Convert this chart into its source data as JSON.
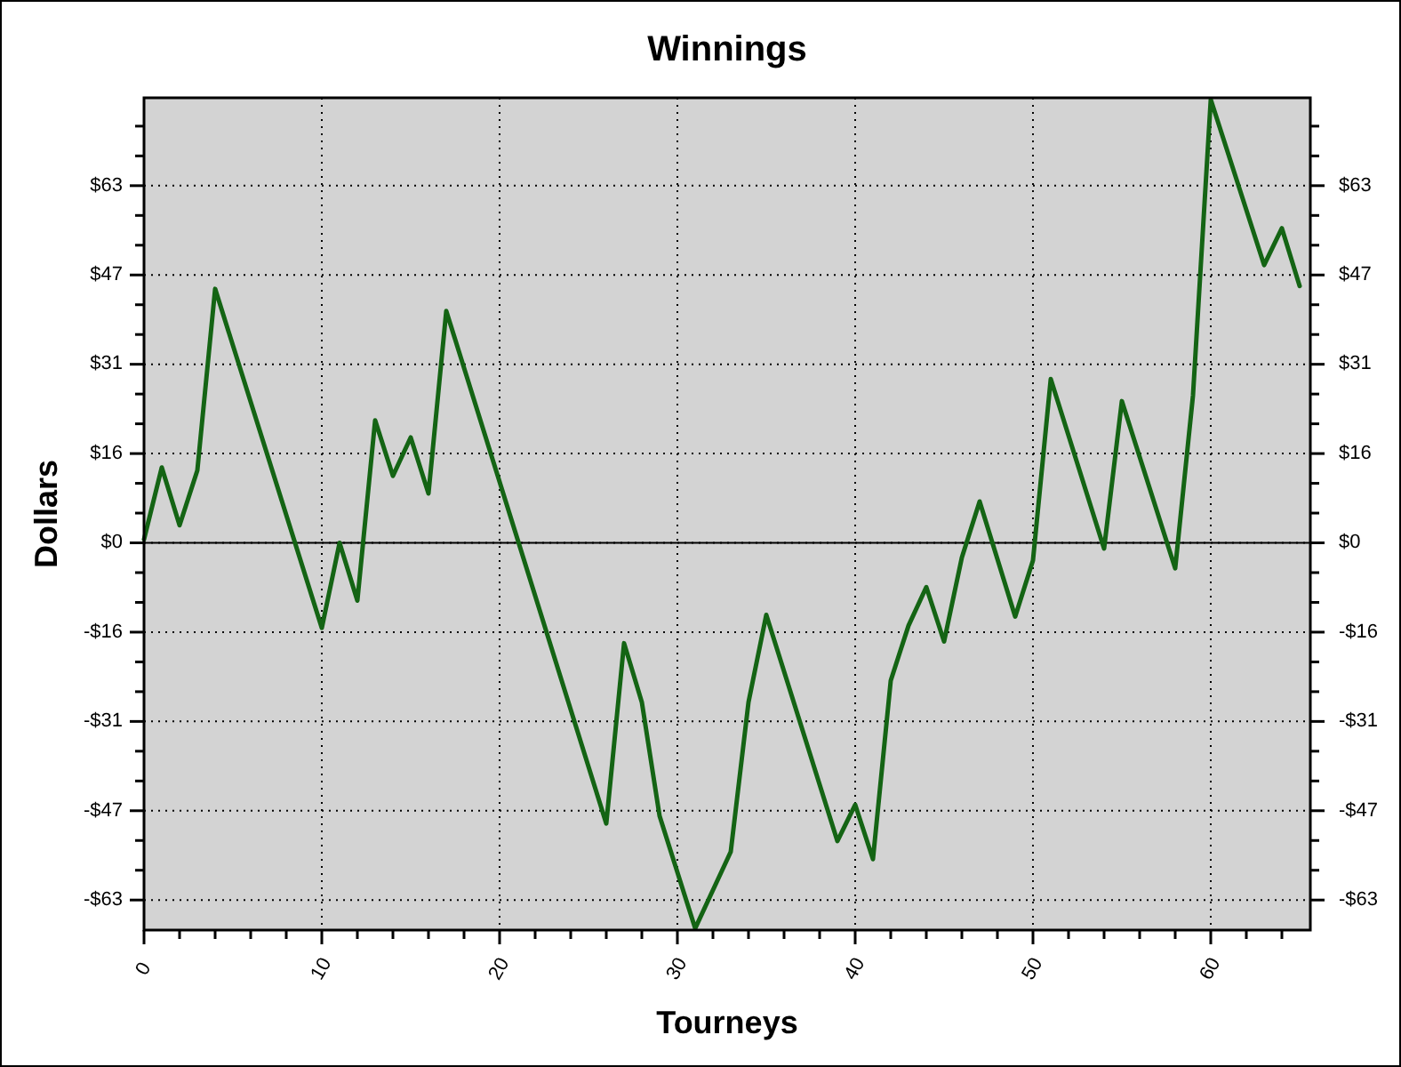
{
  "chart_data": {
    "type": "line",
    "title": "Winnings",
    "xlabel": "Tourneys",
    "ylabel": "Dollars",
    "x": [
      0,
      1,
      2,
      3,
      4,
      10,
      11,
      12,
      13,
      14,
      15,
      16,
      17,
      26,
      27,
      28,
      29,
      31,
      33,
      34,
      35,
      39,
      40,
      41,
      42,
      43,
      44,
      45,
      46,
      47,
      49,
      50,
      51,
      54,
      55,
      58,
      59,
      60,
      63,
      64,
      65
    ],
    "series": [
      {
        "color": "#146414",
        "values": [
          0.6,
          13.3,
          3.1,
          12.8,
          44.8,
          -15,
          0,
          -10.2,
          21.6,
          11.8,
          18.6,
          8.7,
          40.9,
          -49.5,
          -17.7,
          -28.1,
          -48.2,
          -68,
          -54.5,
          -28.1,
          -12.7,
          -52.6,
          -46.2,
          -55.8,
          -24.3,
          -14.6,
          -7.8,
          -17.4,
          -2.6,
          7.3,
          -13,
          -3.1,
          28.9,
          -1,
          25,
          -4.5,
          26,
          78.2,
          49,
          55.5,
          45.3
        ]
      }
    ],
    "xlim": [
      0,
      65.6
    ],
    "xticks": [
      0,
      {
        "value": 2,
        "label": null
      },
      {
        "value": 4,
        "label": null
      },
      {
        "value": 6,
        "label": null
      },
      {
        "value": 8,
        "label": null
      },
      10,
      {
        "value": 12,
        "label": null
      },
      {
        "value": 14,
        "label": null
      },
      {
        "value": 16,
        "label": null
      },
      {
        "value": 18,
        "label": null
      },
      20,
      {
        "value": 22,
        "label": null
      },
      {
        "value": 24,
        "label": null
      },
      {
        "value": 26,
        "label": null
      },
      {
        "value": 28,
        "label": null
      },
      30,
      {
        "value": 32,
        "label": null
      },
      {
        "value": 34,
        "label": null
      },
      {
        "value": 36,
        "label": null
      },
      {
        "value": 38,
        "label": null
      },
      40,
      {
        "value": 42,
        "label": null
      },
      {
        "value": 44,
        "label": null
      },
      {
        "value": 46,
        "label": null
      },
      {
        "value": 48,
        "label": null
      },
      50,
      {
        "value": 52,
        "label": null
      },
      {
        "value": 54,
        "label": null
      },
      {
        "value": 56,
        "label": null
      },
      {
        "value": 58,
        "label": null
      },
      60,
      {
        "value": 62,
        "label": null
      },
      {
        "value": 64,
        "label": null
      }
    ],
    "ylim": [
      -68.3,
      78.5
    ],
    "yticks": [
      {
        "value": -63,
        "label": "-$63"
      },
      {
        "value": -57.75,
        "label": null
      },
      {
        "value": -52.5,
        "label": null
      },
      {
        "value": -47.25,
        "label": "-$47"
      },
      {
        "value": -42,
        "label": null
      },
      {
        "value": -36.75,
        "label": null
      },
      {
        "value": -31.5,
        "label": "-$31"
      },
      {
        "value": -26.25,
        "label": null
      },
      {
        "value": -21,
        "label": null
      },
      {
        "value": -15.75,
        "label": "-$16"
      },
      {
        "value": -10.5,
        "label": null
      },
      {
        "value": -5.25,
        "label": null
      },
      {
        "value": 0,
        "label": "$0"
      },
      {
        "value": 5.25,
        "label": null
      },
      {
        "value": 10.5,
        "label": null
      },
      {
        "value": 15.75,
        "label": "$16"
      },
      {
        "value": 21,
        "label": null
      },
      {
        "value": 26.25,
        "label": null
      },
      {
        "value": 31.5,
        "label": "$31"
      },
      {
        "value": 36.75,
        "label": null
      },
      {
        "value": 42,
        "label": null
      },
      {
        "value": 47.25,
        "label": "$47"
      },
      {
        "value": 52.5,
        "label": null
      },
      {
        "value": 57.75,
        "label": null
      },
      {
        "value": 63,
        "label": "$63"
      },
      {
        "value": 68.25,
        "label": null
      },
      {
        "value": 73.5,
        "label": null
      }
    ],
    "y2lim": [
      -68.3,
      78.5
    ],
    "y2ticks": [
      {
        "value": -63,
        "label": "-$63"
      },
      {
        "value": -57.75,
        "label": null
      },
      {
        "value": -52.5,
        "label": null
      },
      {
        "value": -47.25,
        "label": "-$47"
      },
      {
        "value": -42,
        "label": null
      },
      {
        "value": -36.75,
        "label": null
      },
      {
        "value": -31.5,
        "label": "-$31"
      },
      {
        "value": -26.25,
        "label": null
      },
      {
        "value": -21,
        "label": null
      },
      {
        "value": -15.75,
        "label": "-$16"
      },
      {
        "value": -10.5,
        "label": null
      },
      {
        "value": -5.25,
        "label": null
      },
      {
        "value": 0,
        "label": "$0"
      },
      {
        "value": 5.25,
        "label": null
      },
      {
        "value": 10.5,
        "label": null
      },
      {
        "value": 15.75,
        "label": "$16"
      },
      {
        "value": 21,
        "label": null
      },
      {
        "value": 26.25,
        "label": null
      },
      {
        "value": 31.5,
        "label": "$31"
      },
      {
        "value": 36.75,
        "label": null
      },
      {
        "value": 42,
        "label": null
      },
      {
        "value": 47.25,
        "label": "$47"
      },
      {
        "value": 52.5,
        "label": null
      },
      {
        "value": 57.75,
        "label": null
      },
      {
        "value": 63,
        "label": "$63"
      },
      {
        "value": 68.25,
        "label": null
      },
      {
        "value": 73.5,
        "label": null
      }
    ],
    "ref_lines": [
      {
        "axis": "y",
        "value": 0,
        "color": "#000000"
      }
    ],
    "grid": true,
    "marker": "none",
    "line_style": "solid"
  }
}
